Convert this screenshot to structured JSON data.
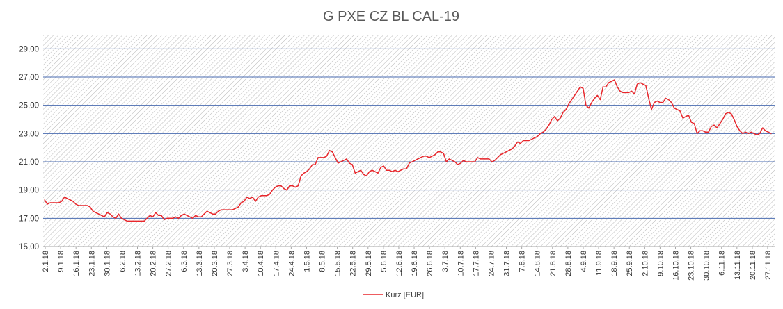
{
  "chart_data": {
    "type": "line",
    "title": "G PXE CZ BL CAL-19",
    "xlabel": "",
    "ylabel": "",
    "ylim": [
      15,
      30
    ],
    "yticks": [
      "15,00",
      "17,00",
      "19,00",
      "21,00",
      "23,00",
      "25,00",
      "27,00",
      "29,00"
    ],
    "ytick_values": [
      15,
      17,
      19,
      21,
      23,
      25,
      27,
      29
    ],
    "grid": true,
    "legend_position": "bottom",
    "line_color": "#e8262b",
    "grid_color": "#4a6bb0",
    "xticks": [
      "2.1.18",
      "9.1.18",
      "16.1.18",
      "23.1.18",
      "30.1.18",
      "6.2.18",
      "13.2.18",
      "20.2.18",
      "27.2.18",
      "6.3.18",
      "13.3.18",
      "20.3.18",
      "27.3.18",
      "3.4.18",
      "10.4.18",
      "17.4.18",
      "24.4.18",
      "1.5.18",
      "8.5.18",
      "15.5.18",
      "22.5.18",
      "29.5.18",
      "5.6.18",
      "12.6.18",
      "19.6.18",
      "26.6.18",
      "3.7.18",
      "10.7.18",
      "17.7.18",
      "24.7.18",
      "31.7.18",
      "7.8.18",
      "14.8.18",
      "21.8.18",
      "28.8.18",
      "4.9.18",
      "11.9.18",
      "18.9.18",
      "25.9.18",
      "2.10.18",
      "9.10.18",
      "16.10.18",
      "23.10.18",
      "30.10.18",
      "6.11.18",
      "13.11.18",
      "20.11.18",
      "27.11.18"
    ],
    "series": [
      {
        "name": "Kurz [EUR]",
        "values": [
          18.3,
          18.0,
          18.1,
          18.1,
          18.1,
          18.1,
          18.2,
          18.5,
          18.4,
          18.3,
          18.2,
          18.0,
          17.9,
          17.9,
          17.9,
          17.9,
          17.8,
          17.5,
          17.4,
          17.3,
          17.2,
          17.1,
          17.4,
          17.3,
          17.1,
          17.0,
          17.3,
          17.0,
          16.9,
          16.8,
          16.8,
          16.8,
          16.8,
          16.8,
          16.8,
          16.8,
          17.0,
          17.2,
          17.1,
          17.4,
          17.2,
          17.2,
          16.9,
          17.0,
          17.0,
          17.0,
          17.1,
          17.0,
          17.2,
          17.3,
          17.2,
          17.1,
          17.0,
          17.2,
          17.1,
          17.1,
          17.3,
          17.5,
          17.4,
          17.3,
          17.3,
          17.5,
          17.6,
          17.6,
          17.6,
          17.6,
          17.6,
          17.7,
          17.8,
          18.1,
          18.2,
          18.5,
          18.4,
          18.5,
          18.2,
          18.5,
          18.6,
          18.6,
          18.6,
          18.7,
          19.0,
          19.2,
          19.3,
          19.3,
          19.1,
          19.0,
          19.3,
          19.3,
          19.2,
          19.3,
          20.0,
          20.2,
          20.3,
          20.5,
          20.8,
          20.8,
          21.3,
          21.3,
          21.3,
          21.4,
          21.8,
          21.7,
          21.3,
          20.9,
          21.0,
          21.1,
          21.2,
          20.9,
          20.8,
          20.2,
          20.3,
          20.4,
          20.1,
          20.0,
          20.3,
          20.4,
          20.3,
          20.2,
          20.6,
          20.7,
          20.4,
          20.4,
          20.3,
          20.4,
          20.3,
          20.4,
          20.5,
          20.5,
          20.9,
          21.0,
          21.1,
          21.2,
          21.3,
          21.4,
          21.4,
          21.3,
          21.4,
          21.5,
          21.7,
          21.7,
          21.6,
          21.0,
          21.2,
          21.1,
          21.0,
          20.8,
          20.9,
          21.1,
          21.0,
          21.0,
          21.0,
          21.0,
          21.3,
          21.2,
          21.2,
          21.2,
          21.2,
          21.0,
          21.1,
          21.3,
          21.5,
          21.6,
          21.7,
          21.8,
          21.9,
          22.1,
          22.4,
          22.3,
          22.5,
          22.5,
          22.5,
          22.6,
          22.7,
          22.8,
          23.0,
          23.1,
          23.3,
          23.6,
          24.0,
          24.2,
          23.9,
          24.1,
          24.5,
          24.7,
          25.1,
          25.4,
          25.7,
          26.0,
          26.3,
          26.2,
          25.0,
          24.8,
          25.2,
          25.5,
          25.7,
          25.4,
          26.3,
          26.3,
          26.6,
          26.7,
          26.8,
          26.3,
          26.0,
          25.9,
          25.9,
          25.9,
          26.0,
          25.8,
          26.5,
          26.6,
          26.5,
          26.4,
          25.5,
          24.7,
          25.2,
          25.3,
          25.2,
          25.2,
          25.5,
          25.4,
          25.2,
          24.8,
          24.7,
          24.6,
          24.1,
          24.2,
          24.3,
          23.8,
          23.7,
          23.0,
          23.2,
          23.2,
          23.1,
          23.1,
          23.5,
          23.6,
          23.4,
          23.7,
          24.0,
          24.4,
          24.5,
          24.4,
          24.0,
          23.5,
          23.2,
          23.0,
          23.1,
          23.0,
          23.1,
          23.0,
          22.9,
          23.0,
          23.4,
          23.2,
          23.1,
          23.0
        ]
      }
    ]
  }
}
